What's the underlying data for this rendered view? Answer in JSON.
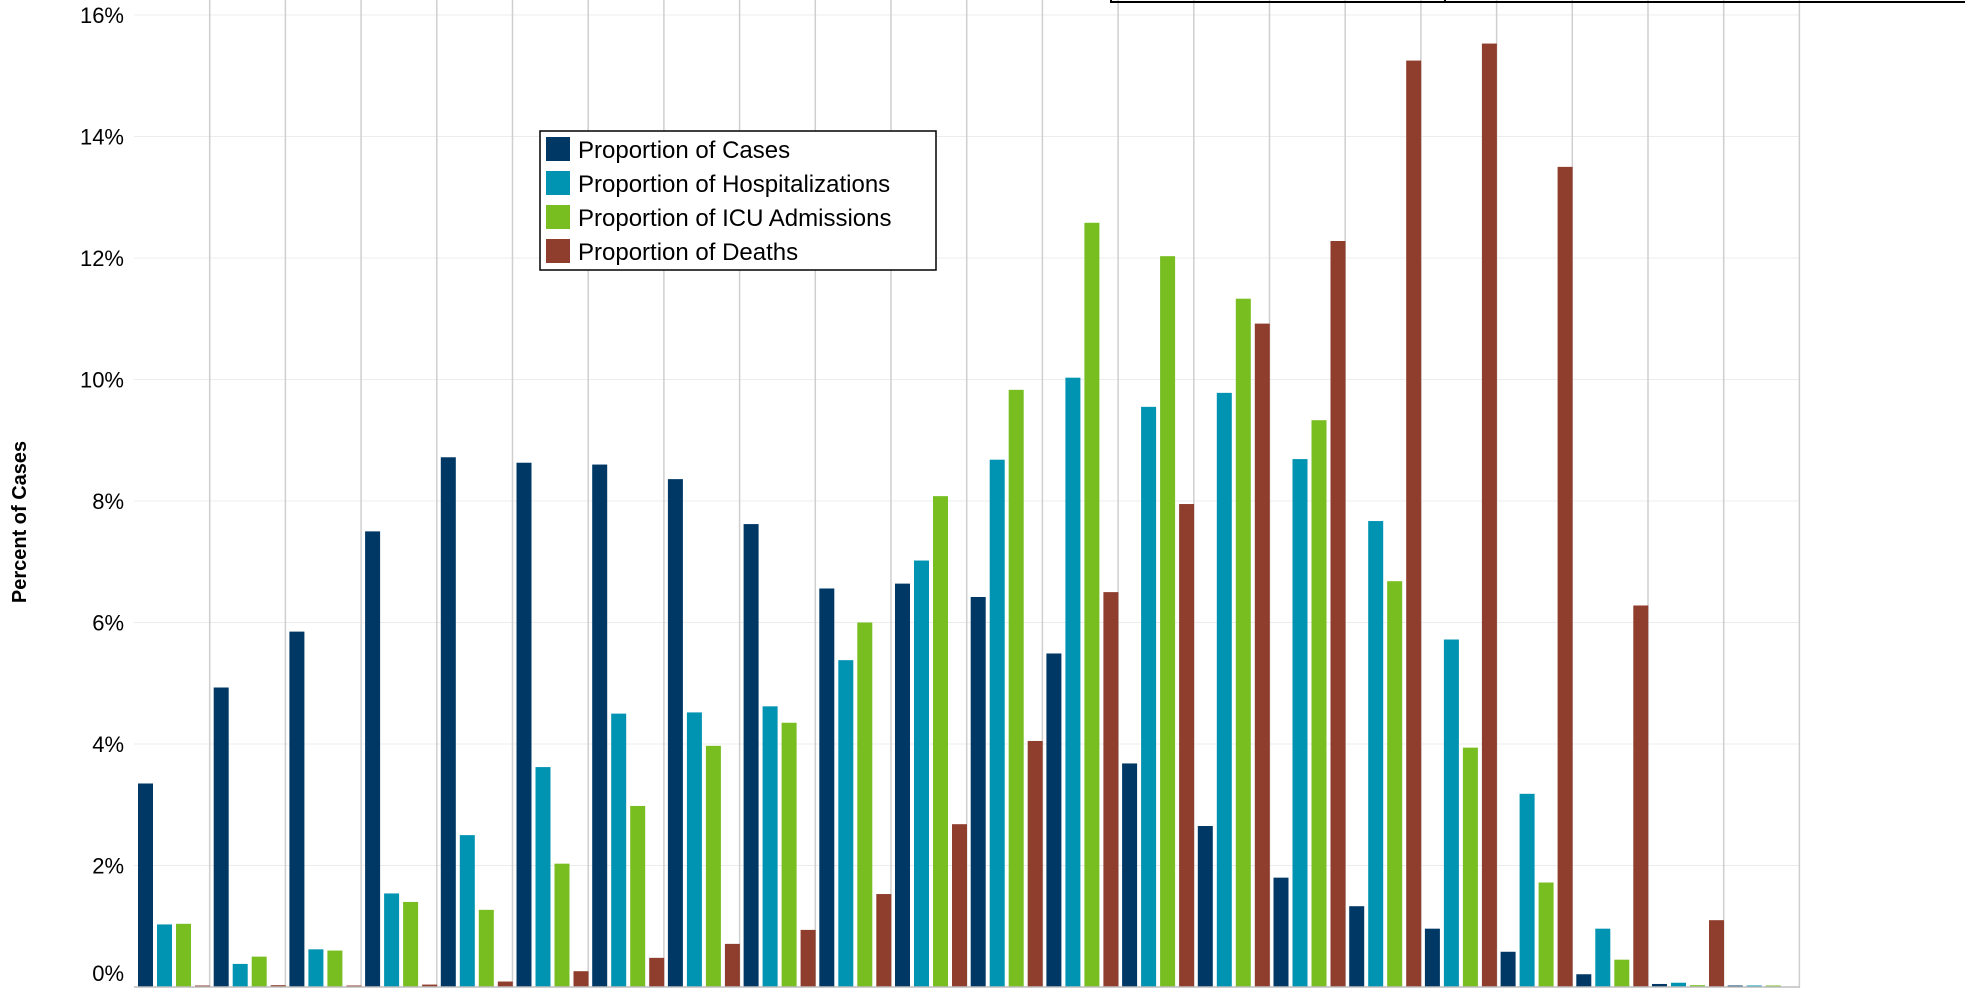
{
  "chart_data": {
    "type": "bar",
    "title": "",
    "xlabel": "",
    "ylabel": "Percent of Cases",
    "ylim": [
      0,
      16
    ],
    "yticks": [
      "0%",
      "2%",
      "4%",
      "6%",
      "8%",
      "10%",
      "12%",
      "14%",
      "16%"
    ],
    "grid": true,
    "legend_position": "upper-left inside",
    "categories": [
      "",
      "",
      "",
      "",
      "",
      "",
      "",
      "",
      "",
      "",
      "",
      "",
      "",
      "",
      "",
      "",
      "",
      "",
      "",
      "",
      "",
      ""
    ],
    "series": [
      {
        "name": "Proportion of Cases",
        "color": "#003865",
        "values": [
          3.35,
          4.93,
          5.85,
          7.5,
          8.72,
          8.63,
          8.6,
          8.36,
          7.62,
          6.56,
          6.64,
          6.42,
          5.49,
          3.68,
          2.65,
          1.8,
          1.33,
          0.96,
          0.58,
          0.21,
          0.05,
          0.02
        ]
      },
      {
        "name": "Proportion of Hospitalizations",
        "color": "#0093B2",
        "values": [
          1.03,
          0.38,
          0.62,
          1.54,
          2.5,
          3.62,
          4.5,
          4.52,
          4.62,
          5.38,
          7.02,
          8.68,
          10.03,
          9.55,
          9.78,
          8.69,
          7.67,
          5.72,
          3.18,
          0.96,
          0.07,
          0.02
        ]
      },
      {
        "name": "Proportion of ICU Admissions",
        "color": "#78BE21",
        "values": [
          1.04,
          0.5,
          0.6,
          1.4,
          1.27,
          2.03,
          2.98,
          3.97,
          4.35,
          6.0,
          8.08,
          9.83,
          12.58,
          12.03,
          11.33,
          9.33,
          6.68,
          3.94,
          1.72,
          0.45,
          0.03,
          0.02
        ]
      },
      {
        "name": "Proportion of Deaths",
        "color": "#8F3D2C",
        "values": [
          0.02,
          0.03,
          0.02,
          0.04,
          0.09,
          0.26,
          0.48,
          0.71,
          0.94,
          1.53,
          2.68,
          4.05,
          6.5,
          7.95,
          10.92,
          12.28,
          15.25,
          15.53,
          13.5,
          6.28,
          1.1,
          0.0
        ]
      }
    ]
  }
}
